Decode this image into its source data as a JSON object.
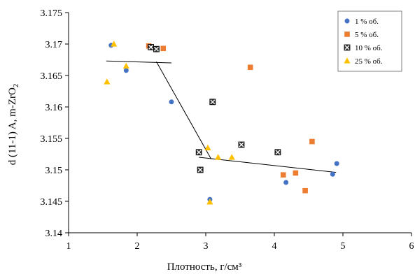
{
  "chart_data": {
    "type": "scatter",
    "title": "",
    "xlabel": "Плотность, г/см³",
    "ylabel_main": "d (11-1) A, m-ZrO",
    "ylabel_sub": "2",
    "xlim": [
      1,
      6
    ],
    "ylim": [
      3.14,
      3.175
    ],
    "x_ticks": [
      1,
      2,
      3,
      4,
      5,
      6
    ],
    "x_tick_labels": [
      "1",
      "2",
      "3",
      "4",
      "5",
      "6"
    ],
    "y_ticks": [
      3.14,
      3.145,
      3.15,
      3.155,
      3.16,
      3.165,
      3.17,
      3.175
    ],
    "y_tick_labels": [
      "3.14",
      "3.145",
      "3.15",
      "3.155",
      "3.16",
      "3.165",
      "3.17",
      "3.175"
    ],
    "grid": false,
    "legend_position": "top-right",
    "series": [
      {
        "name": "1 % об.",
        "marker": "circle",
        "color": "#4472C4",
        "points": [
          [
            1.62,
            3.1698
          ],
          [
            1.84,
            3.1658
          ],
          [
            2.5,
            3.1608
          ],
          [
            3.06,
            3.1453
          ],
          [
            4.17,
            3.148
          ],
          [
            4.85,
            3.1493
          ],
          [
            4.91,
            3.151
          ]
        ]
      },
      {
        "name": "5 % об.",
        "marker": "square",
        "color": "#ED7D31",
        "points": [
          [
            2.17,
            3.1697
          ],
          [
            2.38,
            3.1693
          ],
          [
            3.65,
            3.1663
          ],
          [
            4.13,
            3.1492
          ],
          [
            4.31,
            3.1495
          ],
          [
            4.45,
            3.1467
          ],
          [
            4.55,
            3.1545
          ]
        ]
      },
      {
        "name": "10 % об.",
        "marker": "boxx",
        "color": "#000000",
        "points": [
          [
            2.2,
            3.1695
          ],
          [
            2.28,
            3.1692
          ],
          [
            2.9,
            3.1528
          ],
          [
            2.92,
            3.15
          ],
          [
            3.1,
            3.1608
          ],
          [
            3.52,
            3.154
          ],
          [
            4.05,
            3.1528
          ]
        ]
      },
      {
        "name": "25 % об.",
        "marker": "triangle",
        "color": "#FFC000",
        "points": [
          [
            1.56,
            3.164
          ],
          [
            1.66,
            3.17
          ],
          [
            1.84,
            3.1665
          ],
          [
            3.03,
            3.1535
          ],
          [
            3.06,
            3.1449
          ],
          [
            3.18,
            3.152
          ],
          [
            3.38,
            3.152
          ]
        ]
      }
    ],
    "trend_segments": [
      [
        [
          1.55,
          3.1673
        ],
        [
          2.5,
          3.167
        ]
      ],
      [
        [
          2.28,
          3.1672
        ],
        [
          3.08,
          3.1517
        ]
      ],
      [
        [
          2.9,
          3.152
        ],
        [
          4.9,
          3.1496
        ]
      ]
    ]
  }
}
